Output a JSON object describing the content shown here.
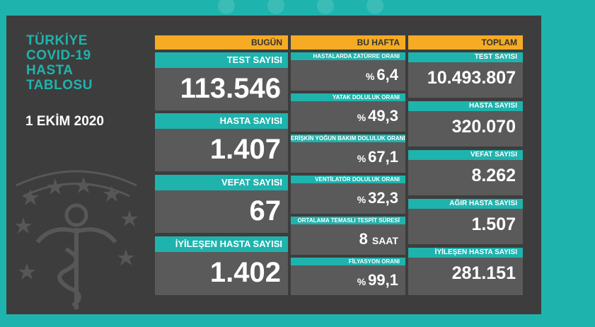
{
  "title_lines": [
    "TÜRKİYE",
    "COVID-19",
    "HASTA",
    "TABLOSU"
  ],
  "date": "1 EKİM 2020",
  "colors": {
    "teal": "#1fb3ad",
    "orange": "#f5ab23",
    "board": "#3d3d3d",
    "card": "#5a5a5a"
  },
  "headers": {
    "today": "BUGÜN",
    "week": "BU HAFTA",
    "total": "TOPLAM"
  },
  "today": [
    {
      "label": "TEST SAYISI",
      "value": "113.546"
    },
    {
      "label": "HASTA SAYISI",
      "value": "1.407"
    },
    {
      "label": "VEFAT SAYISI",
      "value": "67"
    },
    {
      "label": "İYİLEŞEN HASTA SAYISI",
      "value": "1.402"
    }
  ],
  "week": [
    {
      "label": "HASTALARDA ZATÜRRE ORANI",
      "prefix": "%",
      "value": "6,4",
      "unit": ""
    },
    {
      "label": "YATAK DOLULUK ORANI",
      "prefix": "%",
      "value": "49,3",
      "unit": ""
    },
    {
      "label": "ERİŞKİN YOĞUN BAKIM DOLULUK ORANI",
      "prefix": "%",
      "value": "67,1",
      "unit": ""
    },
    {
      "label": "VENTİLATÖR DOLULUK ORANI",
      "prefix": "%",
      "value": "32,3",
      "unit": ""
    },
    {
      "label": "ORTALAMA TEMASLI TESPİT SÜRESİ",
      "prefix": "",
      "value": "8",
      "unit": "SAAT"
    },
    {
      "label": "FİLYASYON ORANI",
      "prefix": "%",
      "value": "99,1",
      "unit": ""
    }
  ],
  "total": [
    {
      "label": "TEST SAYISI",
      "value": "10.493.807"
    },
    {
      "label": "HASTA SAYISI",
      "value": "320.070"
    },
    {
      "label": "VEFAT SAYISI",
      "value": "8.262"
    },
    {
      "label": "AĞIR HASTA SAYISI",
      "value": "1.507"
    },
    {
      "label": "İYİLEŞEN HASTA SAYISI",
      "value": "281.151"
    }
  ],
  "icons": {
    "emblem": "ministry-of-health-emblem-icon"
  }
}
